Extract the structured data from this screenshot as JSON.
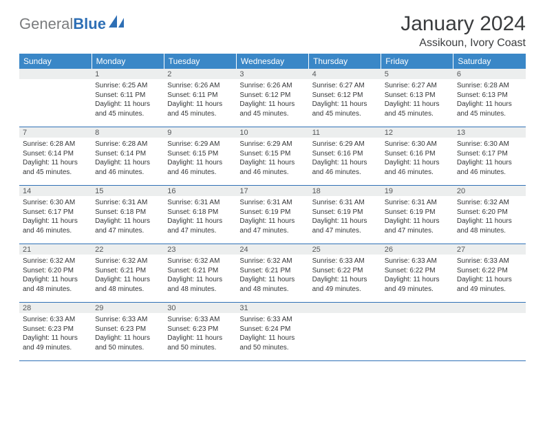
{
  "brand": {
    "part1": "General",
    "part2": "Blue"
  },
  "title": "January 2024",
  "location": "Assikoun, Ivory Coast",
  "colors": {
    "header_bg": "#3a87c7",
    "header_text": "#ffffff",
    "daynum_bg": "#eceeee",
    "rule": "#2e6fb5",
    "logo_gray": "#7a7c7e",
    "logo_blue": "#2e6fb5"
  },
  "weekdays": [
    "Sunday",
    "Monday",
    "Tuesday",
    "Wednesday",
    "Thursday",
    "Friday",
    "Saturday"
  ],
  "weeks": [
    [
      {
        "n": "",
        "sunrise": "",
        "sunset": "",
        "day1": "",
        "day2": ""
      },
      {
        "n": "1",
        "sunrise": "Sunrise: 6:25 AM",
        "sunset": "Sunset: 6:11 PM",
        "day1": "Daylight: 11 hours",
        "day2": "and 45 minutes."
      },
      {
        "n": "2",
        "sunrise": "Sunrise: 6:26 AM",
        "sunset": "Sunset: 6:11 PM",
        "day1": "Daylight: 11 hours",
        "day2": "and 45 minutes."
      },
      {
        "n": "3",
        "sunrise": "Sunrise: 6:26 AM",
        "sunset": "Sunset: 6:12 PM",
        "day1": "Daylight: 11 hours",
        "day2": "and 45 minutes."
      },
      {
        "n": "4",
        "sunrise": "Sunrise: 6:27 AM",
        "sunset": "Sunset: 6:12 PM",
        "day1": "Daylight: 11 hours",
        "day2": "and 45 minutes."
      },
      {
        "n": "5",
        "sunrise": "Sunrise: 6:27 AM",
        "sunset": "Sunset: 6:13 PM",
        "day1": "Daylight: 11 hours",
        "day2": "and 45 minutes."
      },
      {
        "n": "6",
        "sunrise": "Sunrise: 6:28 AM",
        "sunset": "Sunset: 6:13 PM",
        "day1": "Daylight: 11 hours",
        "day2": "and 45 minutes."
      }
    ],
    [
      {
        "n": "7",
        "sunrise": "Sunrise: 6:28 AM",
        "sunset": "Sunset: 6:14 PM",
        "day1": "Daylight: 11 hours",
        "day2": "and 45 minutes."
      },
      {
        "n": "8",
        "sunrise": "Sunrise: 6:28 AM",
        "sunset": "Sunset: 6:14 PM",
        "day1": "Daylight: 11 hours",
        "day2": "and 46 minutes."
      },
      {
        "n": "9",
        "sunrise": "Sunrise: 6:29 AM",
        "sunset": "Sunset: 6:15 PM",
        "day1": "Daylight: 11 hours",
        "day2": "and 46 minutes."
      },
      {
        "n": "10",
        "sunrise": "Sunrise: 6:29 AM",
        "sunset": "Sunset: 6:15 PM",
        "day1": "Daylight: 11 hours",
        "day2": "and 46 minutes."
      },
      {
        "n": "11",
        "sunrise": "Sunrise: 6:29 AM",
        "sunset": "Sunset: 6:16 PM",
        "day1": "Daylight: 11 hours",
        "day2": "and 46 minutes."
      },
      {
        "n": "12",
        "sunrise": "Sunrise: 6:30 AM",
        "sunset": "Sunset: 6:16 PM",
        "day1": "Daylight: 11 hours",
        "day2": "and 46 minutes."
      },
      {
        "n": "13",
        "sunrise": "Sunrise: 6:30 AM",
        "sunset": "Sunset: 6:17 PM",
        "day1": "Daylight: 11 hours",
        "day2": "and 46 minutes."
      }
    ],
    [
      {
        "n": "14",
        "sunrise": "Sunrise: 6:30 AM",
        "sunset": "Sunset: 6:17 PM",
        "day1": "Daylight: 11 hours",
        "day2": "and 46 minutes."
      },
      {
        "n": "15",
        "sunrise": "Sunrise: 6:31 AM",
        "sunset": "Sunset: 6:18 PM",
        "day1": "Daylight: 11 hours",
        "day2": "and 47 minutes."
      },
      {
        "n": "16",
        "sunrise": "Sunrise: 6:31 AM",
        "sunset": "Sunset: 6:18 PM",
        "day1": "Daylight: 11 hours",
        "day2": "and 47 minutes."
      },
      {
        "n": "17",
        "sunrise": "Sunrise: 6:31 AM",
        "sunset": "Sunset: 6:19 PM",
        "day1": "Daylight: 11 hours",
        "day2": "and 47 minutes."
      },
      {
        "n": "18",
        "sunrise": "Sunrise: 6:31 AM",
        "sunset": "Sunset: 6:19 PM",
        "day1": "Daylight: 11 hours",
        "day2": "and 47 minutes."
      },
      {
        "n": "19",
        "sunrise": "Sunrise: 6:31 AM",
        "sunset": "Sunset: 6:19 PM",
        "day1": "Daylight: 11 hours",
        "day2": "and 47 minutes."
      },
      {
        "n": "20",
        "sunrise": "Sunrise: 6:32 AM",
        "sunset": "Sunset: 6:20 PM",
        "day1": "Daylight: 11 hours",
        "day2": "and 48 minutes."
      }
    ],
    [
      {
        "n": "21",
        "sunrise": "Sunrise: 6:32 AM",
        "sunset": "Sunset: 6:20 PM",
        "day1": "Daylight: 11 hours",
        "day2": "and 48 minutes."
      },
      {
        "n": "22",
        "sunrise": "Sunrise: 6:32 AM",
        "sunset": "Sunset: 6:21 PM",
        "day1": "Daylight: 11 hours",
        "day2": "and 48 minutes."
      },
      {
        "n": "23",
        "sunrise": "Sunrise: 6:32 AM",
        "sunset": "Sunset: 6:21 PM",
        "day1": "Daylight: 11 hours",
        "day2": "and 48 minutes."
      },
      {
        "n": "24",
        "sunrise": "Sunrise: 6:32 AM",
        "sunset": "Sunset: 6:21 PM",
        "day1": "Daylight: 11 hours",
        "day2": "and 48 minutes."
      },
      {
        "n": "25",
        "sunrise": "Sunrise: 6:33 AM",
        "sunset": "Sunset: 6:22 PM",
        "day1": "Daylight: 11 hours",
        "day2": "and 49 minutes."
      },
      {
        "n": "26",
        "sunrise": "Sunrise: 6:33 AM",
        "sunset": "Sunset: 6:22 PM",
        "day1": "Daylight: 11 hours",
        "day2": "and 49 minutes."
      },
      {
        "n": "27",
        "sunrise": "Sunrise: 6:33 AM",
        "sunset": "Sunset: 6:22 PM",
        "day1": "Daylight: 11 hours",
        "day2": "and 49 minutes."
      }
    ],
    [
      {
        "n": "28",
        "sunrise": "Sunrise: 6:33 AM",
        "sunset": "Sunset: 6:23 PM",
        "day1": "Daylight: 11 hours",
        "day2": "and 49 minutes."
      },
      {
        "n": "29",
        "sunrise": "Sunrise: 6:33 AM",
        "sunset": "Sunset: 6:23 PM",
        "day1": "Daylight: 11 hours",
        "day2": "and 50 minutes."
      },
      {
        "n": "30",
        "sunrise": "Sunrise: 6:33 AM",
        "sunset": "Sunset: 6:23 PM",
        "day1": "Daylight: 11 hours",
        "day2": "and 50 minutes."
      },
      {
        "n": "31",
        "sunrise": "Sunrise: 6:33 AM",
        "sunset": "Sunset: 6:24 PM",
        "day1": "Daylight: 11 hours",
        "day2": "and 50 minutes."
      },
      {
        "n": "",
        "sunrise": "",
        "sunset": "",
        "day1": "",
        "day2": ""
      },
      {
        "n": "",
        "sunrise": "",
        "sunset": "",
        "day1": "",
        "day2": ""
      },
      {
        "n": "",
        "sunrise": "",
        "sunset": "",
        "day1": "",
        "day2": ""
      }
    ]
  ]
}
